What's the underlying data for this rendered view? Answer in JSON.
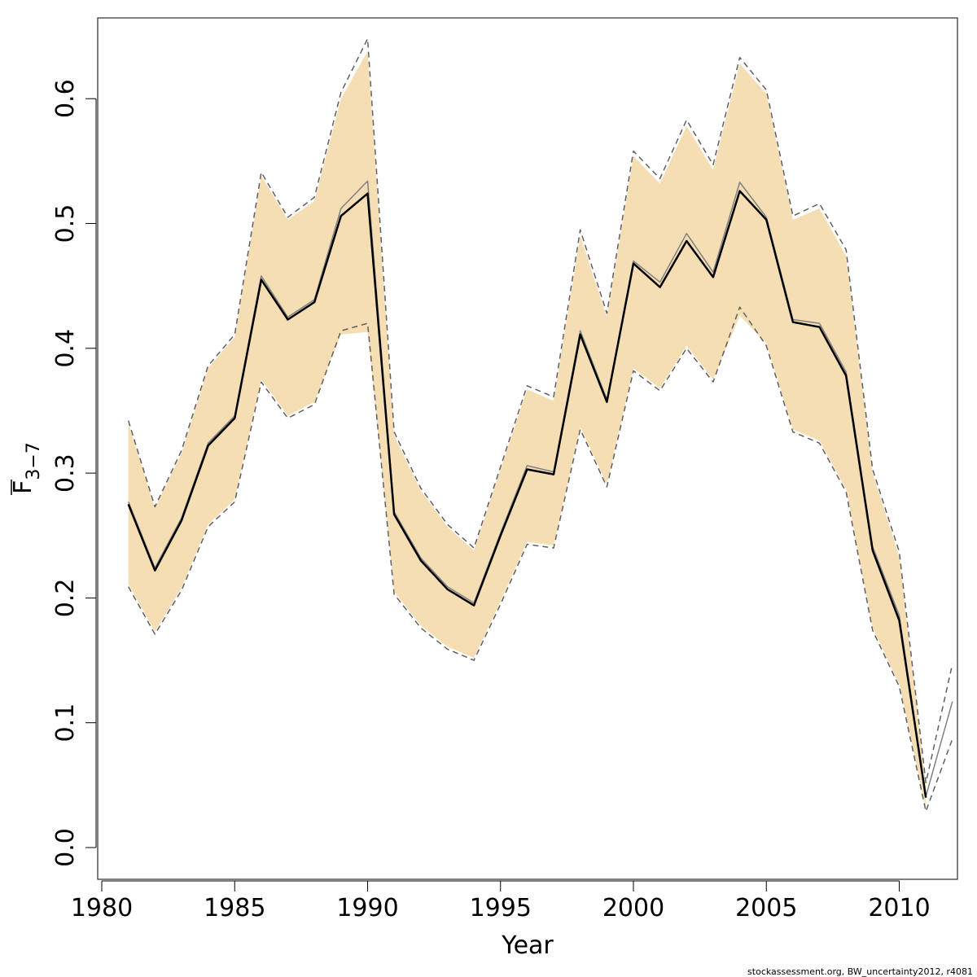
{
  "chart_data": {
    "type": "line",
    "xlabel": "Year",
    "ylabel": {
      "base": "F",
      "sub": "3−7"
    },
    "xlim": [
      1980,
      2012
    ],
    "ylim": [
      -0.025,
      0.66
    ],
    "xticks": [
      1980,
      1985,
      1990,
      1995,
      2000,
      2005,
      2010
    ],
    "yticks": [
      "0.0",
      "0.1",
      "0.2",
      "0.3",
      "0.4",
      "0.5",
      "0.6"
    ],
    "grid": false,
    "band_color": "#f5deb3",
    "series": [
      {
        "x": [
          1981,
          1982,
          1983,
          1984,
          1985,
          1986,
          1987,
          1988,
          1989,
          1990,
          1991,
          1992,
          1993,
          1994,
          1995,
          1996,
          1997,
          1998,
          1999,
          2000,
          2001,
          2002,
          2003,
          2004,
          2005,
          2006,
          2007,
          2008,
          2009,
          2010,
          2011
        ],
        "values": [
          0.275,
          0.222,
          0.262,
          0.322,
          0.344,
          0.455,
          0.423,
          0.437,
          0.506,
          0.524,
          0.267,
          0.23,
          0.207,
          0.194,
          0.25,
          0.303,
          0.299,
          0.411,
          0.357,
          0.468,
          0.449,
          0.486,
          0.457,
          0.526,
          0.503,
          0.421,
          0.417,
          0.378,
          0.238,
          0.182,
          0.04
        ],
        "color": "#000000",
        "style": "solid-thick"
      },
      {
        "x": [
          1981,
          1982,
          1983,
          1984,
          1985,
          1986,
          1987,
          1988,
          1989,
          1990,
          1991,
          1992,
          1993,
          1994,
          1995,
          1996,
          1997,
          1998,
          1999,
          2000,
          2001,
          2002,
          2003,
          2004,
          2005,
          2006,
          2007,
          2008,
          2009,
          2010,
          2011,
          2012
        ],
        "values": [
          0.277,
          0.224,
          0.264,
          0.324,
          0.346,
          0.458,
          0.425,
          0.439,
          0.512,
          0.534,
          0.269,
          0.232,
          0.209,
          0.196,
          0.252,
          0.306,
          0.301,
          0.414,
          0.359,
          0.47,
          0.453,
          0.492,
          0.461,
          0.533,
          0.505,
          0.423,
          0.42,
          0.381,
          0.241,
          0.186,
          0.041,
          0.117
        ],
        "color": "#808080",
        "style": "solid-thin"
      },
      {
        "x": [
          1981,
          1982,
          1983,
          1984,
          1985,
          1986,
          1987,
          1988,
          1989,
          1990,
          1991,
          1992,
          1993,
          1994,
          1995,
          1996,
          1997,
          1998,
          1999,
          2000,
          2001,
          2002,
          2003,
          2004,
          2005,
          2006,
          2007,
          2008,
          2009,
          2010,
          2011,
          2012
        ],
        "values": [
          0.342,
          0.273,
          0.318,
          0.386,
          0.411,
          0.541,
          0.505,
          0.521,
          0.605,
          0.648,
          0.333,
          0.288,
          0.259,
          0.24,
          0.305,
          0.37,
          0.361,
          0.495,
          0.428,
          0.558,
          0.536,
          0.583,
          0.547,
          0.633,
          0.607,
          0.506,
          0.516,
          0.479,
          0.303,
          0.237,
          0.052,
          0.147
        ],
        "color": "#606060",
        "style": "dashed"
      },
      {
        "x": [
          1981,
          1982,
          1983,
          1984,
          1985,
          1986,
          1987,
          1988,
          1989,
          1990,
          1991,
          1992,
          1993,
          1994,
          1995,
          1996,
          1997,
          1998,
          1999,
          2000,
          2001,
          2002,
          2003,
          2004,
          2005,
          2006,
          2007,
          2008,
          2009,
          2010,
          2011,
          2012
        ],
        "values": [
          0.209,
          0.171,
          0.206,
          0.257,
          0.277,
          0.373,
          0.344,
          0.355,
          0.414,
          0.42,
          0.203,
          0.176,
          0.159,
          0.15,
          0.195,
          0.243,
          0.24,
          0.335,
          0.289,
          0.382,
          0.366,
          0.4,
          0.373,
          0.433,
          0.402,
          0.333,
          0.324,
          0.285,
          0.174,
          0.129,
          0.029,
          0.087
        ],
        "color": "#606060",
        "style": "dashed"
      }
    ],
    "band": {
      "x": [
        1981,
        1982,
        1983,
        1984,
        1985,
        1986,
        1987,
        1988,
        1989,
        1990,
        1991,
        1992,
        1993,
        1994,
        1995,
        1996,
        1997,
        1998,
        1999,
        2000,
        2001,
        2002,
        2003,
        2004,
        2005,
        2006,
        2007,
        2008,
        2009,
        2010,
        2011
      ],
      "upper": [
        0.34,
        0.272,
        0.316,
        0.384,
        0.409,
        0.538,
        0.503,
        0.518,
        0.6,
        0.638,
        0.33,
        0.286,
        0.257,
        0.238,
        0.303,
        0.367,
        0.358,
        0.49,
        0.425,
        0.554,
        0.532,
        0.578,
        0.543,
        0.628,
        0.604,
        0.503,
        0.512,
        0.474,
        0.3,
        0.233,
        0.05
      ],
      "lower": [
        0.211,
        0.173,
        0.208,
        0.259,
        0.279,
        0.375,
        0.346,
        0.357,
        0.411,
        0.413,
        0.205,
        0.178,
        0.161,
        0.152,
        0.197,
        0.245,
        0.242,
        0.337,
        0.291,
        0.384,
        0.368,
        0.402,
        0.375,
        0.426,
        0.404,
        0.335,
        0.326,
        0.287,
        0.176,
        0.131,
        0.031
      ]
    }
  },
  "footer": "stockassessment.org, BW_uncertainty2012, r4081"
}
